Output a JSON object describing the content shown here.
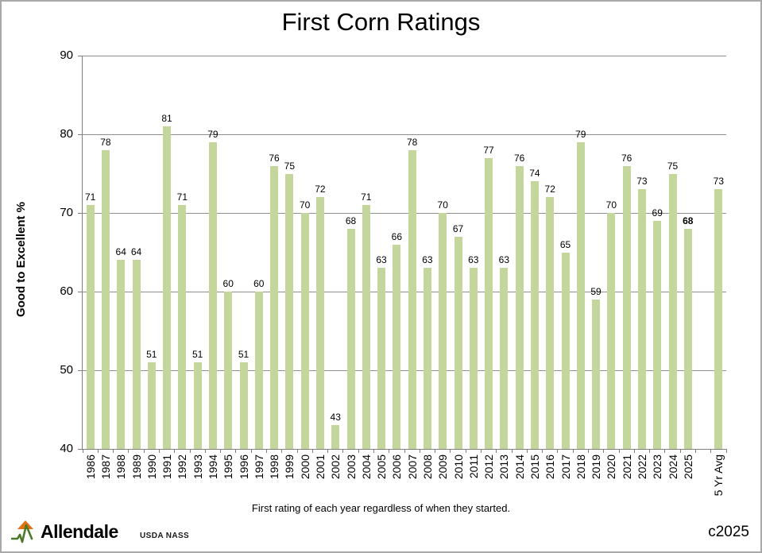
{
  "chart_data": {
    "type": "bar",
    "title": "First Corn Ratings",
    "xlabel": "First rating of each year regardless of when they started.",
    "ylabel": "Good to Excellent %",
    "ylim": [
      40,
      90
    ],
    "yticks": [
      40,
      50,
      60,
      70,
      80,
      90
    ],
    "grid": true,
    "legend": false,
    "value_labels": "above-bars",
    "categories": [
      "1986",
      "1987",
      "1988",
      "1989",
      "1990",
      "1991",
      "1992",
      "1993",
      "1994",
      "1995",
      "1996",
      "1997",
      "1998",
      "1999",
      "2000",
      "2001",
      "2002",
      "2003",
      "2004",
      "2005",
      "2006",
      "2007",
      "2008",
      "2009",
      "2010",
      "2011",
      "2012",
      "2013",
      "2014",
      "2015",
      "2016",
      "2017",
      "2018",
      "2019",
      "2020",
      "2021",
      "2022",
      "2023",
      "2024",
      "2025",
      "",
      "5 Yr Avg"
    ],
    "values": [
      71,
      78,
      64,
      64,
      51,
      81,
      71,
      51,
      79,
      60,
      51,
      60,
      76,
      75,
      70,
      72,
      43,
      68,
      71,
      63,
      66,
      78,
      63,
      70,
      67,
      63,
      77,
      63,
      76,
      74,
      72,
      65,
      79,
      59,
      70,
      76,
      73,
      69,
      75,
      68,
      null,
      73
    ],
    "bold_value_categories": [
      "2025"
    ]
  },
  "footer": {
    "logo_text": "Allendale",
    "source": "USDA NASS",
    "copyright": "c2025"
  },
  "colors": {
    "bar": "#c4d69c",
    "gridline": "#8f8f8f",
    "axis": "#7f7f7f",
    "text": "#000000",
    "logo_green": "#4a7a28",
    "logo_orange": "#e2700f",
    "frame_border": "#a9a9a9"
  }
}
